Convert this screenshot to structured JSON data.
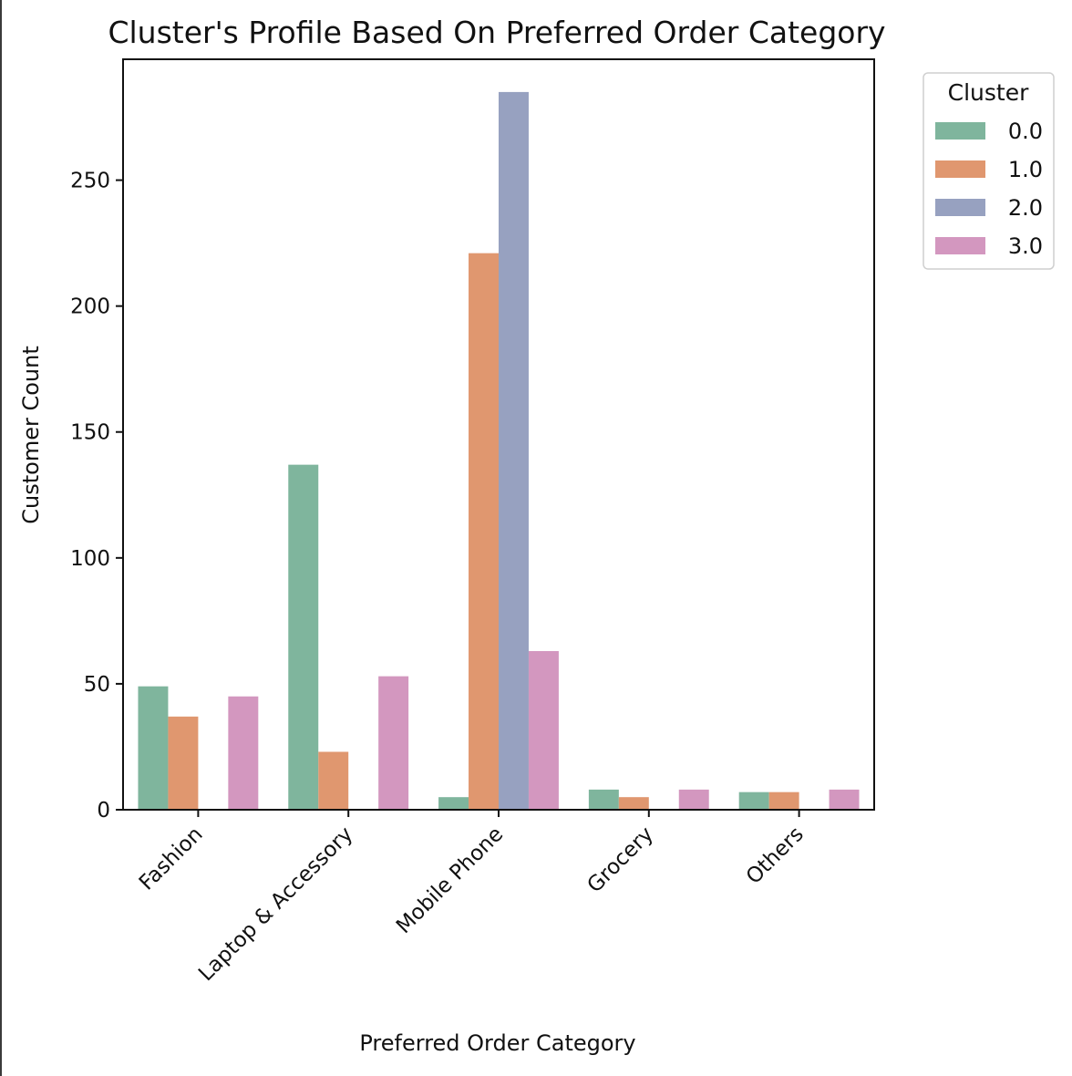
{
  "chart_data": {
    "type": "bar",
    "title": "Cluster's Profile Based On Preferred Order Category",
    "xlabel": "Preferred Order Category",
    "ylabel": "Customer Count",
    "categories": [
      "Fashion",
      "Laptop & Accessory",
      "Mobile Phone",
      "Grocery",
      "Others"
    ],
    "series": [
      {
        "name": "0.0",
        "color": "#7fb59d",
        "values": [
          49,
          137,
          5,
          8,
          7
        ]
      },
      {
        "name": "1.0",
        "color": "#e0976f",
        "values": [
          37,
          23,
          221,
          5,
          7
        ]
      },
      {
        "name": "2.0",
        "color": "#97a1c0",
        "values": [
          0,
          0,
          285,
          0,
          0
        ]
      },
      {
        "name": "3.0",
        "color": "#d397bf",
        "values": [
          45,
          53,
          63,
          8,
          8
        ]
      }
    ],
    "yticks": [
      0,
      50,
      100,
      150,
      200,
      250
    ],
    "ylim": [
      0,
      298
    ],
    "legend": {
      "title": "Cluster",
      "placement": "outside-right"
    },
    "grid": false
  }
}
